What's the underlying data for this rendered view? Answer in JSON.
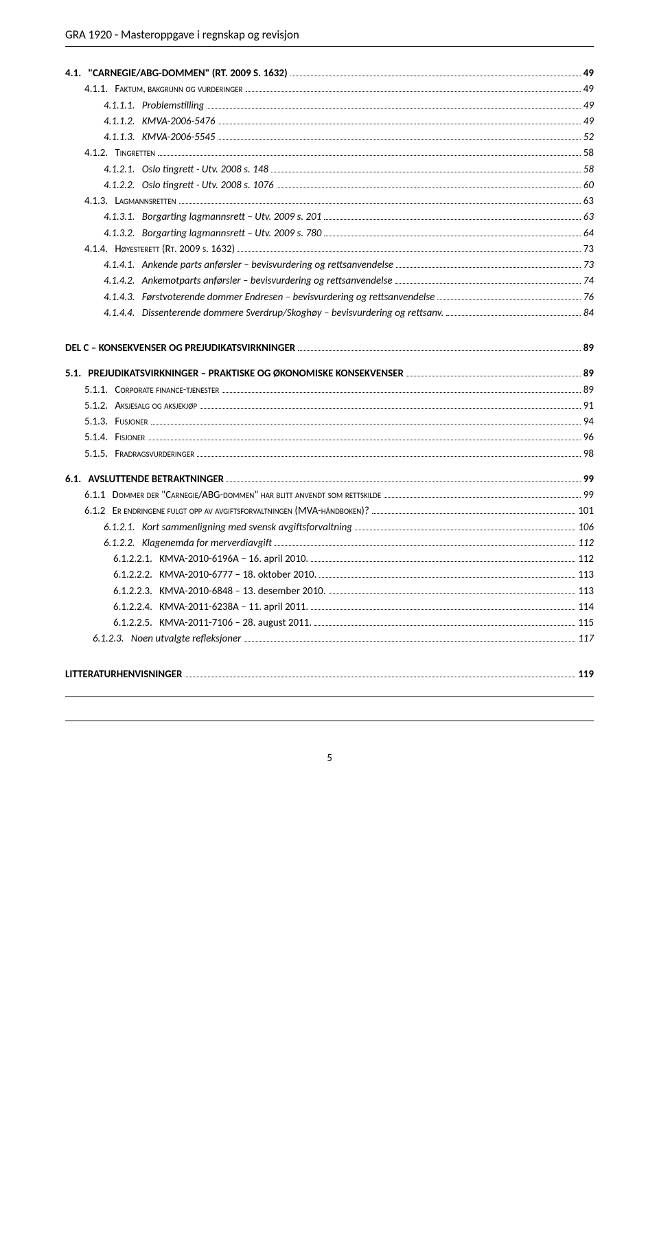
{
  "header": "GRA 1920 - Masteroppgave i regnskap og revisjon",
  "footer_page": "5",
  "toc": [
    {
      "cls": "ind0",
      "num": "4.1.",
      "title": "\"CARNEGIE/ABG-DOMMEN\" (RT. 2009 S. 1632)",
      "page": "49"
    },
    {
      "cls": "ind1 smallcaps",
      "num": "4.1.1.",
      "title": "Faktum, bakgrunn og vurderinger",
      "page": "49"
    },
    {
      "cls": "ind2 italic",
      "num": "4.1.1.1.",
      "title": "Problemstilling",
      "page": "49"
    },
    {
      "cls": "ind2 italic",
      "num": "4.1.1.2.",
      "title": "KMVA-2006-5476",
      "page": "49"
    },
    {
      "cls": "ind2 italic",
      "num": "4.1.1.3.",
      "title": "KMVA-2006-5545",
      "page": "52"
    },
    {
      "cls": "ind1 smallcaps",
      "num": "4.1.2.",
      "title": "Tingretten",
      "page": "58"
    },
    {
      "cls": "ind2 italic",
      "num": "4.1.2.1.",
      "title": "Oslo tingrett - Utv. 2008 s. 148",
      "page": "58"
    },
    {
      "cls": "ind2 italic",
      "num": "4.1.2.2.",
      "title": "Oslo tingrett - Utv. 2008 s. 1076",
      "page": "60"
    },
    {
      "cls": "ind1 smallcaps",
      "num": "4.1.3.",
      "title": "Lagmannsretten",
      "page": "63"
    },
    {
      "cls": "ind2 italic",
      "num": "4.1.3.1.",
      "title": "Borgarting lagmannsrett – Utv. 2009 s. 201",
      "page": "63"
    },
    {
      "cls": "ind2 italic",
      "num": "4.1.3.2.",
      "title": "Borgarting lagmannsrett – Utv. 2009 s. 780",
      "page": "64"
    },
    {
      "cls": "ind1 smallcaps",
      "num": "4.1.4.",
      "title": "Høyesterett (Rt. 2009 s. 1632)",
      "page": "73"
    },
    {
      "cls": "ind2 italic",
      "num": "4.1.4.1.",
      "title": "Ankende parts anførsler – bevisvurdering og rettsanvendelse",
      "page": "73"
    },
    {
      "cls": "ind2 italic",
      "num": "4.1.4.2.",
      "title": "Ankemotparts anførsler – bevisvurdering og rettsanvendelse",
      "page": "74"
    },
    {
      "cls": "ind2 italic",
      "num": "4.1.4.3.",
      "title": "Førstvoterende dommer Endresen – bevisvurdering og rettsanvendelse",
      "page": "76"
    },
    {
      "cls": "ind2 italic",
      "num": "4.1.4.4.",
      "title": "Dissenterende dommere Sverdrup/Skoghøy – bevisvurdering og rettsanv.",
      "page": "84"
    },
    {
      "gap": true
    },
    {
      "cls": "ind0",
      "num": "",
      "title": "DEL C – KONSEKVENSER OG PREJUDIKATSVIRKNINGER",
      "page": "89"
    },
    {
      "gap": true,
      "small": true
    },
    {
      "cls": "ind0",
      "num": "5.1.",
      "title": "PREJUDIKATSVIRKNINGER – PRAKTISKE OG ØKONOMISKE KONSEKVENSER",
      "page": "89"
    },
    {
      "cls": "ind1 smallcaps",
      "num": "5.1.1.",
      "title": "Corporate finance-tjenester",
      "page": "89"
    },
    {
      "cls": "ind1 smallcaps",
      "num": "5.1.2.",
      "title": "Aksjesalg og aksjekjøp",
      "page": "91"
    },
    {
      "cls": "ind1 smallcaps",
      "num": "5.1.3.",
      "title": "Fusjoner",
      "page": "94"
    },
    {
      "cls": "ind1 smallcaps",
      "num": "5.1.4.",
      "title": "Fisjoner",
      "page": "96"
    },
    {
      "cls": "ind1 smallcaps",
      "num": "5.1.5.",
      "title": "Fradragsvurderinger",
      "page": "98"
    },
    {
      "gap": true,
      "small": true
    },
    {
      "cls": "ind0",
      "num": "6.1.",
      "title": "AVSLUTTENDE BETRAKTNINGER",
      "page": "99"
    },
    {
      "cls": "ind1sc smallcaps",
      "num": "6.1.1",
      "title": "Dommer der \"Carnegie/ABG-dommen\" har blitt anvendt som rettskilde",
      "page": "99"
    },
    {
      "cls": "ind1sc smallcaps",
      "num": "6.1.2",
      "title": "Er endringene fulgt opp av avgiftsforvaltningen (MVA-håndboken)?",
      "page": "101"
    },
    {
      "cls": "ind2 italic",
      "num": "6.1.2.1.",
      "title": "Kort sammenligning med svensk avgiftsforvaltning",
      "page": "106"
    },
    {
      "cls": "ind2 italic",
      "num": "6.1.2.2.",
      "title": "Klagenemda for merverdiavgift",
      "page": "112"
    },
    {
      "cls": "ind3",
      "num": "6.1.2.2.1.",
      "title": "KMVA-2010-6196A – 16. april 2010.",
      "page": "112"
    },
    {
      "cls": "ind3",
      "num": "6.1.2.2.2.",
      "title": "KMVA-2010-6777 – 18. oktober 2010.",
      "page": "113"
    },
    {
      "cls": "ind3",
      "num": "6.1.2.2.3.",
      "title": "KMVA-2010-6848 – 13. desember 2010.",
      "page": "113"
    },
    {
      "cls": "ind3",
      "num": "6.1.2.2.4.",
      "title": "KMVA-2011-6238A – 11. april 2011.",
      "page": "114"
    },
    {
      "cls": "ind3",
      "num": "6.1.2.2.5.",
      "title": "KMVA-2011-7106 – 28. august 2011.",
      "page": "115"
    },
    {
      "cls": "ind2i",
      "num": "6.1.2.3.",
      "title": "Noen utvalgte refleksjoner",
      "page": "117"
    },
    {
      "gap": true
    },
    {
      "cls": "ind0",
      "num": "",
      "title": "LITTERATURHENVISNINGER",
      "page": "119"
    }
  ]
}
